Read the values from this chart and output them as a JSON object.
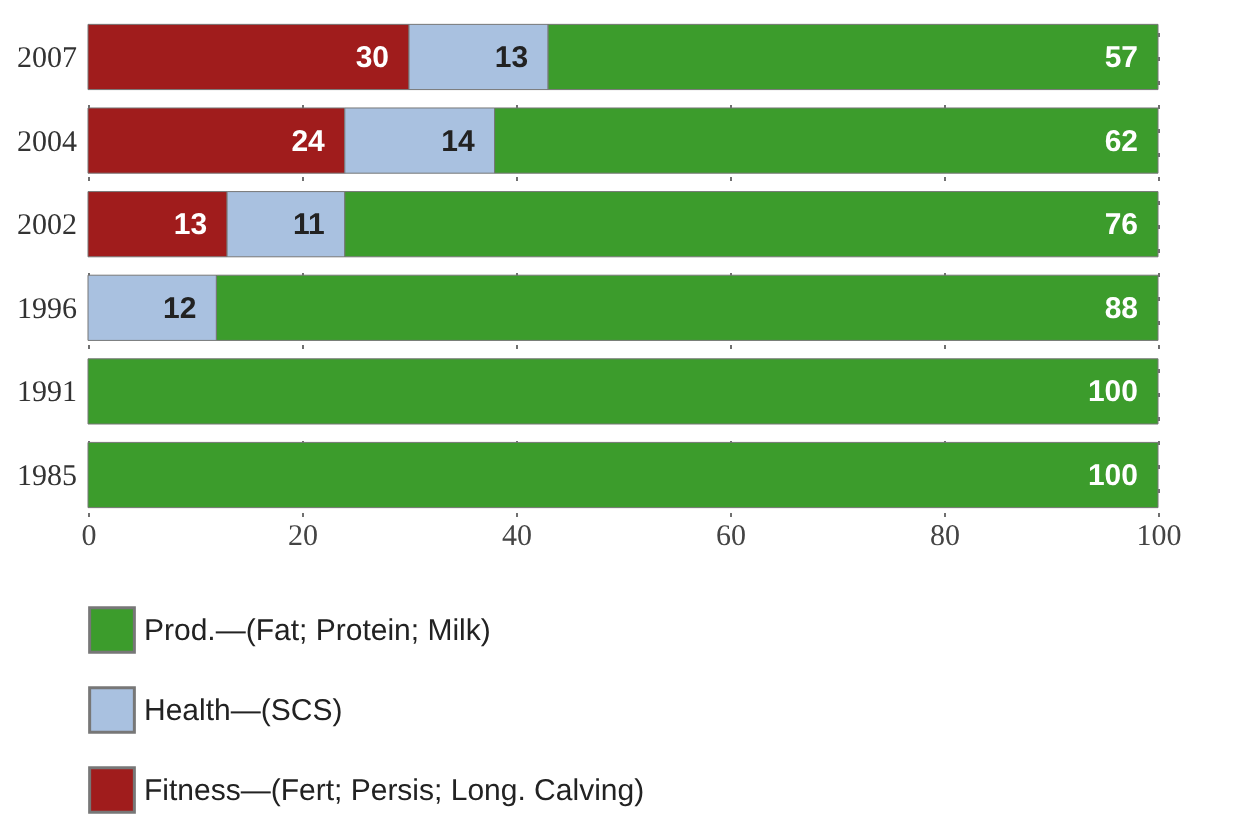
{
  "chart_data": {
    "type": "bar",
    "orientation": "horizontal",
    "stacked": true,
    "categories": [
      "2007",
      "2004",
      "2002",
      "1996",
      "1991",
      "1985"
    ],
    "series": [
      {
        "name": "Fitness—(Fert; Persis; Long. Calving)",
        "color": "#a01c1c",
        "values": [
          30,
          24,
          13,
          null,
          null,
          null
        ]
      },
      {
        "name": "Health—(SCS)",
        "color": "#a9c1e0",
        "values": [
          13,
          14,
          11,
          12,
          null,
          null
        ]
      },
      {
        "name": "Prod.—(Fat; Protein; Milk)",
        "color": "#3c9c2c",
        "values": [
          57,
          62,
          76,
          88,
          100,
          100
        ]
      }
    ],
    "xlim": [
      0,
      100
    ],
    "xticks": [
      0,
      20,
      40,
      60,
      80,
      100
    ],
    "grid": "x",
    "data_labels": true,
    "legend": "bottom left"
  }
}
